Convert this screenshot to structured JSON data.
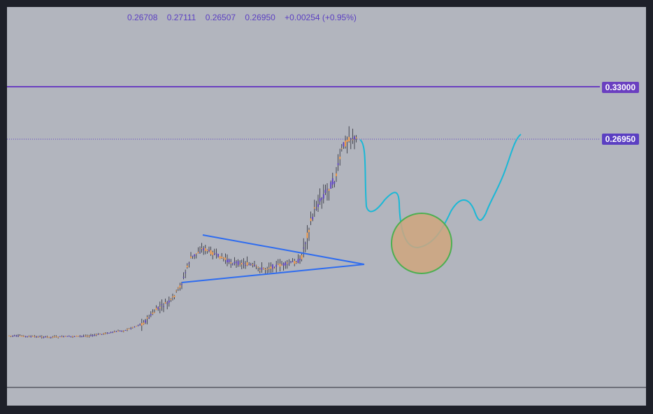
{
  "ohlc": {
    "open": "0.26708",
    "high": "0.27111",
    "low": "0.26507",
    "close": "0.26950",
    "change": "+0.00254 (+0.95%)"
  },
  "price_labels": {
    "resistance": "0.33000",
    "current": "0.26950"
  },
  "colors": {
    "background": "#b2b5be",
    "frame": "#1e2029",
    "up_candle": "#5b3fc2",
    "down_candle": "#f0913a",
    "resistance_line": "#6a3fc0",
    "triangle": "#2e6cf0",
    "projection_path": "#1ab8d6",
    "target_circle_stroke": "#4caf50",
    "target_circle_fill": "#cfa67e"
  },
  "chart_data": {
    "type": "candlestick",
    "yticks": [],
    "horizontal_levels": [
      {
        "value": 0.33,
        "style": "solid",
        "label": "0.33000"
      },
      {
        "value": 0.2695,
        "style": "dotted",
        "label": "0.26950"
      }
    ],
    "last_candle": {
      "open": 0.26708,
      "high": 0.27111,
      "low": 0.26507,
      "close": 0.2695
    },
    "drawings": [
      "symmetrical-triangle",
      "projection-path",
      "target-circle"
    ]
  }
}
